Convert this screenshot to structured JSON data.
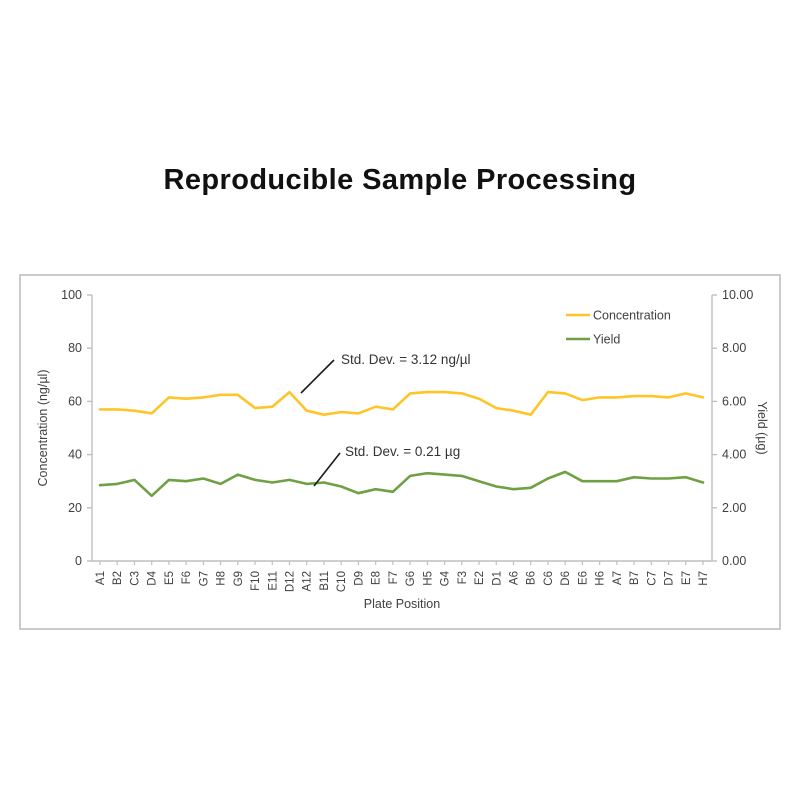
{
  "page": {
    "title": "Reproducible Sample Processing"
  },
  "chart_data": {
    "type": "line",
    "title": "Reproducible Sample Processing",
    "xlabel": "Plate Position",
    "ylabel_left": "Concentration (ng/µl)",
    "ylabel_right": "Yield (µg)",
    "ylim_left": [
      0,
      100
    ],
    "ylim_right": [
      0,
      10
    ],
    "yticks_left": [
      "0",
      "20",
      "40",
      "60",
      "80",
      "100"
    ],
    "yticks_right": [
      "0.00",
      "2.00",
      "4.00",
      "6.00",
      "8.00",
      "10.00"
    ],
    "grid": false,
    "legend_position": "top-right-inside",
    "categories": [
      "A1",
      "B2",
      "C3",
      "D4",
      "E5",
      "F6",
      "G7",
      "H8",
      "G9",
      "F10",
      "E11",
      "D12",
      "A12",
      "B11",
      "C10",
      "D9",
      "E8",
      "F7",
      "G6",
      "H5",
      "G4",
      "F3",
      "E2",
      "D1",
      "A6",
      "B6",
      "C6",
      "D6",
      "E6",
      "H6",
      "A7",
      "B7",
      "C7",
      "D7",
      "E7",
      "H7"
    ],
    "series": [
      {
        "name": "Concentration",
        "axis": "left",
        "color": "#FFC428",
        "values": [
          57,
          57,
          56.5,
          55.5,
          61.5,
          61,
          61.5,
          62.5,
          62.5,
          57.5,
          58,
          63.5,
          56.5,
          55,
          56,
          55.5,
          58,
          57,
          63,
          63.5,
          63.5,
          63,
          61,
          57.5,
          56.5,
          55,
          63.5,
          63,
          60.5,
          61.5,
          61.5,
          62,
          62,
          61.5,
          63,
          61.5
        ]
      },
      {
        "name": "Yield",
        "axis": "right",
        "color": "#6FA144",
        "values": [
          2.85,
          2.9,
          3.05,
          2.45,
          3.05,
          3.0,
          3.1,
          2.9,
          3.25,
          3.05,
          2.95,
          3.05,
          2.9,
          2.95,
          2.8,
          2.55,
          2.7,
          2.6,
          3.2,
          3.3,
          3.25,
          3.2,
          3.0,
          2.8,
          2.7,
          2.75,
          3.1,
          3.35,
          3.0,
          3.0,
          3.0,
          3.15,
          3.1,
          3.1,
          3.15,
          2.95
        ]
      }
    ],
    "annotations": [
      {
        "text": "Std. Dev. = 3.12 ng/µl",
        "tx": 320,
        "ty": 88,
        "lx1": 280,
        "ly1": 117,
        "lx2": 313,
        "ly2": 84
      },
      {
        "text": "Std. Dev. = 0.21 µg",
        "tx": 324,
        "ty": 180,
        "lx1": 293,
        "ly1": 210,
        "lx2": 319,
        "ly2": 177
      }
    ]
  },
  "colors": {
    "axis_line": "#BFBFBF",
    "tick_text": "#404040",
    "annotation_text": "#333333",
    "annotation_line": "#1a1a1a",
    "card_border": "#cbcbcb",
    "title_text": "#111111"
  }
}
